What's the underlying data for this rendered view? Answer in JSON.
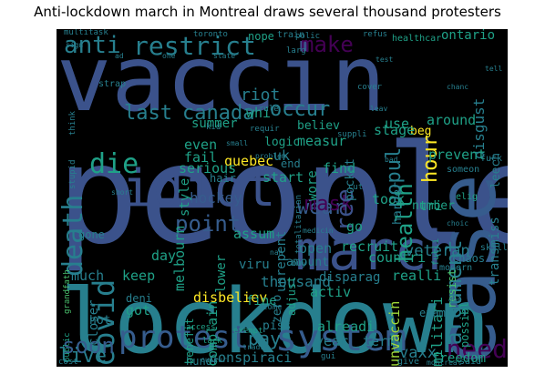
{
  "figure": {
    "title": "Anti-lockdown march in Montreal draws several thousand protesters"
  },
  "colors": {
    "background": "#000000",
    "palette": [
      "#46327e",
      "#3b528b",
      "#365c8d",
      "#277f8e",
      "#1fa187",
      "#4ac16d",
      "#a0da39",
      "#fde725",
      "#440154",
      "#2c728e"
    ]
  },
  "wordcloud": {
    "words": [
      "people",
      "lockdown",
      "vaccin",
      "case",
      "march",
      "idiot",
      "protest",
      "system",
      "death",
      "die",
      "covid",
      "anti",
      "restrict",
      "make",
      "point",
      "wear",
      "soon",
      "live",
      "mask",
      "pay",
      "need",
      "argument",
      "canada",
      "last",
      "occur",
      "hockey",
      "riot",
      "popul",
      "health",
      "free",
      "hour",
      "quebec",
      "leech",
      "transmiss",
      "disgust",
      "veteran",
      "recruit",
      "countri",
      "militari",
      "realli",
      "thousand",
      "disbeliev",
      "conspiraci",
      "freedom",
      "vaxx",
      "year",
      "term",
      "unvaccin",
      "resist",
      "fulli",
      "alreadi",
      "hundr",
      "piss",
      "much",
      "keep",
      "day",
      "melbourn",
      "serious",
      "even",
      "fail",
      "uk",
      "summer",
      "whi",
      "measur",
      "use",
      "beg",
      "around",
      "prevent",
      "start",
      "find",
      "stage",
      "took",
      "go",
      "open",
      "activ",
      "deni",
      "complain",
      "assum",
      "benefit",
      "fine",
      "lower",
      "style",
      "hot",
      "closer",
      "got",
      "zero",
      "adjust",
      "amount",
      "unrepent",
      "number",
      "possibl",
      "disparag",
      "tri",
      "ontario",
      "harder",
      "end",
      "wore",
      "believ",
      "logic",
      "pocket",
      "gone",
      "viru",
      "hair",
      "nope",
      "public",
      "multitask",
      "train",
      "refus",
      "healthcar",
      "strap",
      "stupid",
      "grandfath",
      "totalitarian",
      "elig",
      "access",
      "exempt",
      "cultur",
      "give",
      "someon",
      "fuck",
      "skill",
      "modern",
      "lack",
      "cost",
      "chaos",
      "exampl",
      "montreal",
      "said",
      "come",
      "rule",
      "kid",
      "toronto",
      "polic",
      "requir",
      "think",
      "sign",
      "cut",
      "suppli",
      "problem",
      "larg",
      "cover",
      "leav",
      "chanc",
      "choic",
      "bad",
      "small",
      "medicin",
      "tradit",
      "gui",
      "buy",
      "don",
      "nah",
      "ad",
      "one",
      "state",
      "test",
      "tell",
      "short"
    ]
  }
}
